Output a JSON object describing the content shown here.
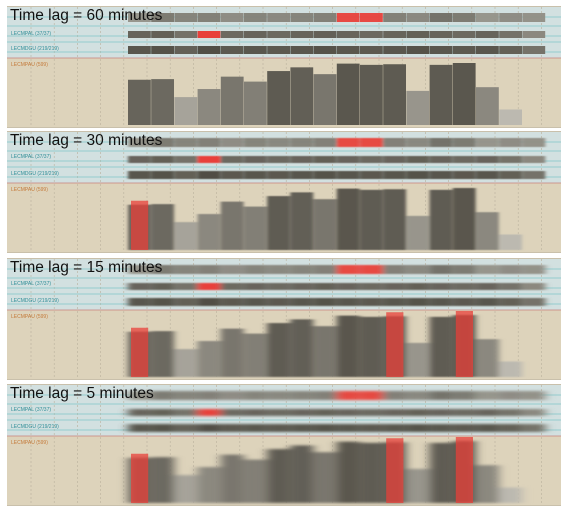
{
  "colors": {
    "background": "#ddd3bb",
    "track_band": "#d2e0e0",
    "teal_line": "#7fc6c9",
    "red_line": "#c9807b",
    "highlight": "#e8403a",
    "teal_label": "#2f8e98",
    "orange_label": "#c47a3a"
  },
  "track_labels": {
    "track1": "LECMPAL (37/37)",
    "track2": "LECMDGU (219/219)",
    "track3": "LECMPAU (599)"
  },
  "panels": [
    {
      "title": "Time lag = 60 minutes",
      "blur": 0
    },
    {
      "title": "Time lag = 30 minutes",
      "blur": 1
    },
    {
      "title": "Time lag = 15 minutes",
      "blur": 2
    },
    {
      "title": "Time lag = 5 minutes",
      "blur": 3
    }
  ],
  "bar_series": {
    "track1": [
      0.3,
      0.6,
      0.5,
      0.55,
      0.4,
      0.5,
      0.45,
      0.5,
      0.55,
      0.5,
      0.55,
      0.55,
      0.45,
      0.7,
      0.6,
      0.3,
      0.4,
      0.35
    ],
    "track1_highlight": [
      null,
      null,
      null,
      null,
      null,
      null,
      null,
      null,
      null,
      1,
      1,
      null,
      null,
      null,
      null,
      null,
      null,
      null
    ],
    "track2": [
      0.7,
      0.75,
      0.55,
      0.8,
      0.65,
      0.7,
      0.65,
      0.7,
      0.75,
      0.7,
      0.65,
      0.7,
      0.75,
      0.7,
      0.65,
      0.7,
      0.55,
      0.3
    ],
    "track2_highlight": [
      null,
      null,
      null,
      1,
      null,
      null,
      null,
      null,
      null,
      null,
      null,
      null,
      null,
      null,
      null,
      null,
      null,
      null
    ],
    "track3": [
      0.73,
      0.74,
      0.45,
      0.58,
      0.78,
      0.7,
      0.87,
      0.93,
      0.82,
      0.99,
      0.97,
      0.98,
      0.55,
      0.97,
      1.0,
      0.61,
      0.25,
      0.0
    ],
    "track3_shade": [
      0.35,
      0.38,
      0.7,
      0.55,
      0.45,
      0.5,
      0.3,
      0.32,
      0.45,
      0.28,
      0.3,
      0.3,
      0.62,
      0.3,
      0.28,
      0.55,
      0.82,
      0.9
    ]
  },
  "highlight_columns": [
    {
      "panel": 1,
      "track": "track3",
      "index": 0
    },
    {
      "panel": 2,
      "track": "track3",
      "index": 0
    },
    {
      "panel": 2,
      "track": "track3",
      "index": 11
    },
    {
      "panel": 2,
      "track": "track3",
      "index": 14
    },
    {
      "panel": 3,
      "track": "track3",
      "index": 0
    },
    {
      "panel": 3,
      "track": "track3",
      "index": 11
    },
    {
      "panel": 3,
      "track": "track3",
      "index": 14
    }
  ]
}
